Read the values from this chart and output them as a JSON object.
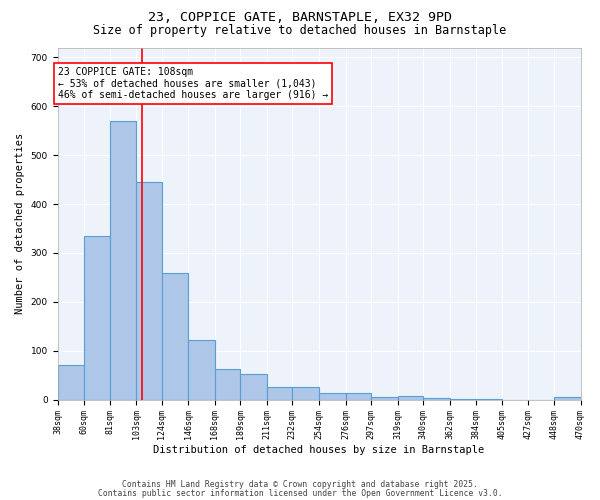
{
  "title_line1": "23, COPPICE GATE, BARNSTAPLE, EX32 9PD",
  "title_line2": "Size of property relative to detached houses in Barnstaple",
  "xlabel": "Distribution of detached houses by size in Barnstaple",
  "ylabel": "Number of detached properties",
  "bin_edges": [
    38,
    60,
    81,
    103,
    124,
    146,
    168,
    189,
    211,
    232,
    254,
    276,
    297,
    319,
    340,
    362,
    384,
    405,
    427,
    448,
    470
  ],
  "bar_heights": [
    70,
    335,
    570,
    445,
    260,
    123,
    62,
    52,
    27,
    25,
    13,
    13,
    5,
    7,
    3,
    2,
    1,
    0,
    0,
    5
  ],
  "bar_color": "#aec6e8",
  "bar_edgecolor": "#5a9fd4",
  "bar_linewidth": 0.8,
  "vline_x": 108,
  "vline_color": "red",
  "vline_linewidth": 1.2,
  "annotation_text": "23 COPPICE GATE: 108sqm\n← 53% of detached houses are smaller (1,043)\n46% of semi-detached houses are larger (916) →",
  "annotation_fontsize": 7.0,
  "ylim": [
    0,
    720
  ],
  "background_color": "#eef3fb",
  "grid_color": "#ffffff",
  "footer_text1": "Contains HM Land Registry data © Crown copyright and database right 2025.",
  "footer_text2": "Contains public sector information licensed under the Open Government Licence v3.0.",
  "title_fontsize": 9.5,
  "subtitle_fontsize": 8.5,
  "xlabel_fontsize": 7.5,
  "ylabel_fontsize": 7.5,
  "tick_fontsize": 6.0,
  "footer_fontsize": 5.8
}
